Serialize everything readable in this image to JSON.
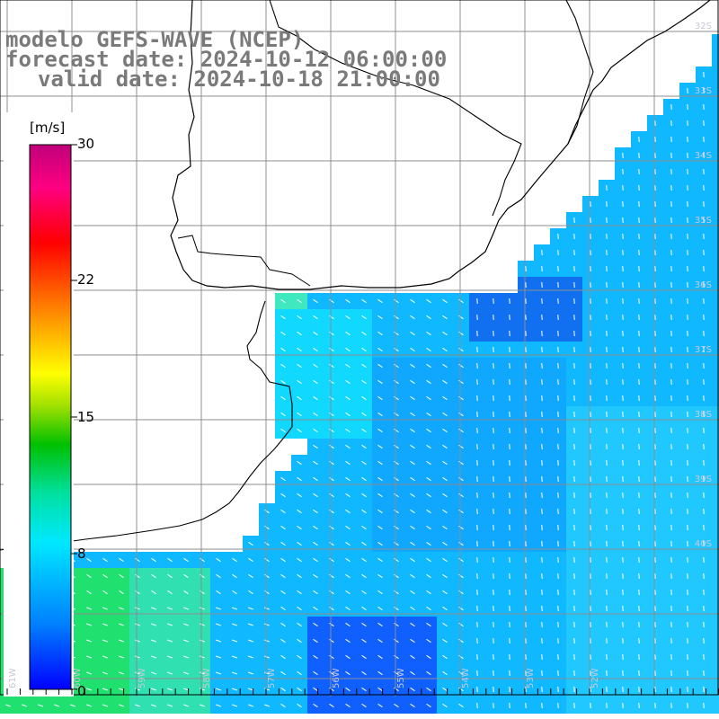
{
  "title": {
    "line1": "modelo GEFS-WAVE (NCEP)",
    "line2": "forecast date: 2024-10-12 06:00:00",
    "line3": "valid date: 2024-10-18 21:00:00"
  },
  "colorbar": {
    "unit": "[m/s]",
    "ticks": [
      "30",
      "22",
      "15",
      "8",
      "0"
    ],
    "tick_values": [
      30,
      22,
      15,
      8,
      0
    ],
    "colors": [
      "#0000ff",
      "#0080ff",
      "#00e0ff",
      "#00c000",
      "#ffff00",
      "#ff8000",
      "#ff0000",
      "#ff0080",
      "#c8007a"
    ]
  },
  "grid": {
    "lat_labels": [
      "32S",
      "33S",
      "34S",
      "35S",
      "36S",
      "37S",
      "38S",
      "39S",
      "40S"
    ],
    "lon_labels": [
      "61W",
      "60W",
      "59W",
      "58W",
      "57W",
      "56W",
      "55W",
      "54W",
      "53W",
      "52W"
    ]
  },
  "colors": {
    "land": "#ffffff",
    "coast": "#000000",
    "grid": "#8c8c8c",
    "arrows": "#ffffff",
    "title": "#7a7a7a"
  }
}
